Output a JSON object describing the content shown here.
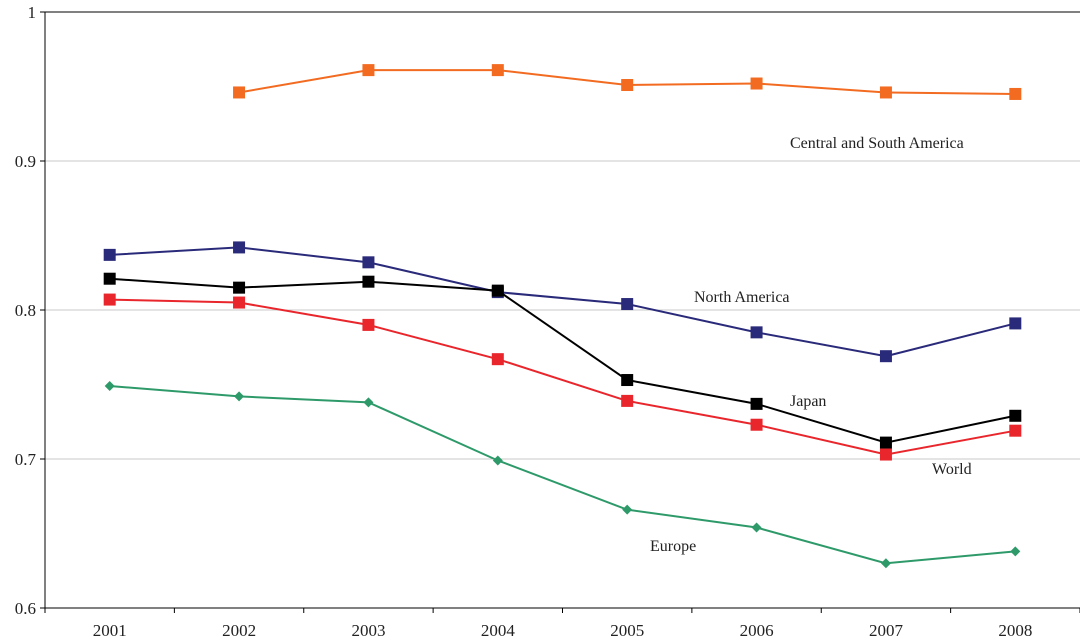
{
  "chart_data": {
    "type": "line",
    "title": "",
    "xlabel": "",
    "ylabel": "",
    "x": [
      "2001",
      "2002",
      "2003",
      "2004",
      "2005",
      "2006",
      "2007",
      "2008"
    ],
    "ylim": [
      0.6,
      1.0
    ],
    "yticks": [
      0.6,
      0.7,
      0.8,
      0.9,
      1.0
    ],
    "ytick_labels": [
      "0.6",
      "0.7",
      "0.8",
      "0.9",
      "1"
    ],
    "grid": "horizontal",
    "legend": "none",
    "series": [
      {
        "name": "Central and South America",
        "color": "#f26b21",
        "marker": "square",
        "values": [
          null,
          0.946,
          0.961,
          0.961,
          0.951,
          0.952,
          0.946,
          0.945
        ]
      },
      {
        "name": "North America",
        "color": "#2a2a7a",
        "marker": "square",
        "values": [
          0.837,
          0.842,
          0.832,
          0.812,
          0.804,
          0.785,
          0.769,
          0.791
        ]
      },
      {
        "name": "Japan",
        "color": "#000000",
        "marker": "square",
        "values": [
          0.821,
          0.815,
          0.819,
          0.813,
          0.753,
          0.737,
          0.711,
          0.729
        ]
      },
      {
        "name": "World",
        "color": "#e8262c",
        "marker": "square",
        "values": [
          0.807,
          0.805,
          0.79,
          0.767,
          0.739,
          0.723,
          0.703,
          0.719
        ]
      },
      {
        "name": "Europe",
        "color": "#2e9a6a",
        "marker": "diamond",
        "values": [
          0.749,
          0.742,
          0.738,
          0.699,
          0.666,
          0.654,
          0.63,
          0.638
        ]
      }
    ]
  }
}
